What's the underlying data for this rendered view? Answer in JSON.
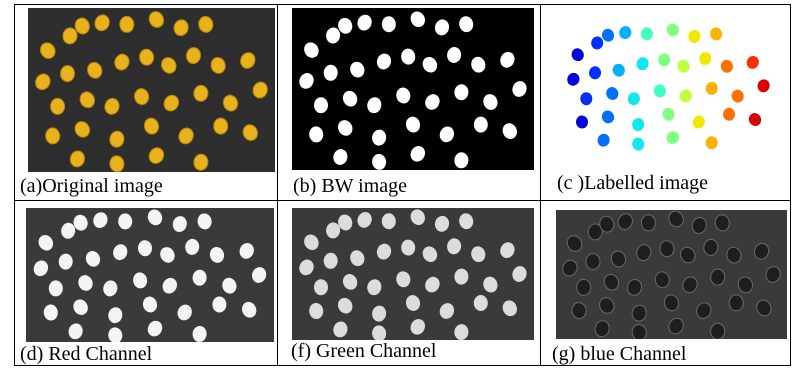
{
  "figure": {
    "panels": [
      {
        "id": "a",
        "caption": "(a)Original image",
        "kind": "original"
      },
      {
        "id": "b",
        "caption": "(b) BW image",
        "kind": "bw"
      },
      {
        "id": "c",
        "caption": "(c )Labelled image",
        "kind": "labelled"
      },
      {
        "id": "d",
        "caption": "(d) Red Channel",
        "kind": "red"
      },
      {
        "id": "f",
        "caption": "(f) Green Channel",
        "kind": "green"
      },
      {
        "id": "g",
        "caption": "(g) blue Channel",
        "kind": "blue"
      }
    ],
    "colors": {
      "original_bg": "#2e2e2e",
      "kernel": "#e8b21c",
      "kernel_edge": "#b8860b",
      "bw_bg": "#000000",
      "bw_blob": "#ffffff",
      "channel_bg": "#3a3a3a",
      "red_blob": "#f4f4f4",
      "green_blob": "#dcdcdc",
      "blue_blob": "#1e1e1e",
      "labelled_bg": "#ffffff"
    }
  }
}
